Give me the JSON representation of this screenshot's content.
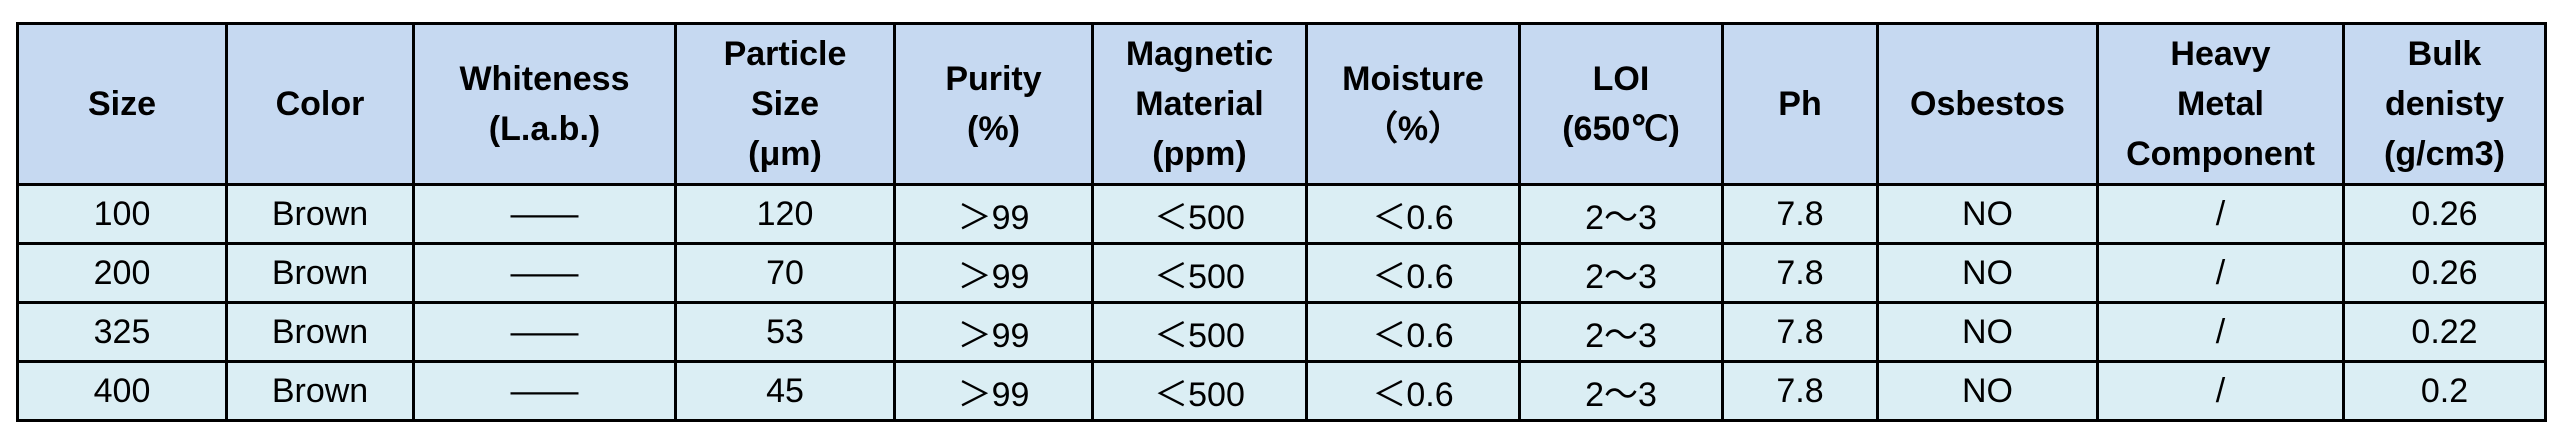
{
  "table": {
    "header": [
      "Size",
      "Color",
      "Whiteness\n(L.a.b.)",
      "Particle\nSize\n(μm)",
      "Purity\n(%)",
      "Magnetic\nMaterial\n(ppm)",
      "Moisture\n（%）",
      "LOI\n(650℃)",
      "Ph",
      "Osbestos",
      "Heavy\nMetal\nComponent",
      "Bulk\ndenisty\n(g/cm3)"
    ],
    "rows": [
      [
        "100",
        "Brown",
        "——",
        "120",
        "＞99",
        "＜500",
        "＜0.6",
        "2～3",
        "7.8",
        "NO",
        "/",
        "0.26"
      ],
      [
        "200",
        "Brown",
        "——",
        "70",
        "＞99",
        "＜500",
        "＜0.6",
        "2～3",
        "7.8",
        "NO",
        "/",
        "0.26"
      ],
      [
        "325",
        "Brown",
        "——",
        "53",
        "＞99",
        "＜500",
        "＜0.6",
        "2～3",
        "7.8",
        "NO",
        "/",
        "0.22"
      ],
      [
        "400",
        "Brown",
        "——",
        "45",
        "＞99",
        "＜500",
        "＜0.6",
        "2～3",
        "7.8",
        "NO",
        "/",
        "0.2"
      ]
    ]
  }
}
